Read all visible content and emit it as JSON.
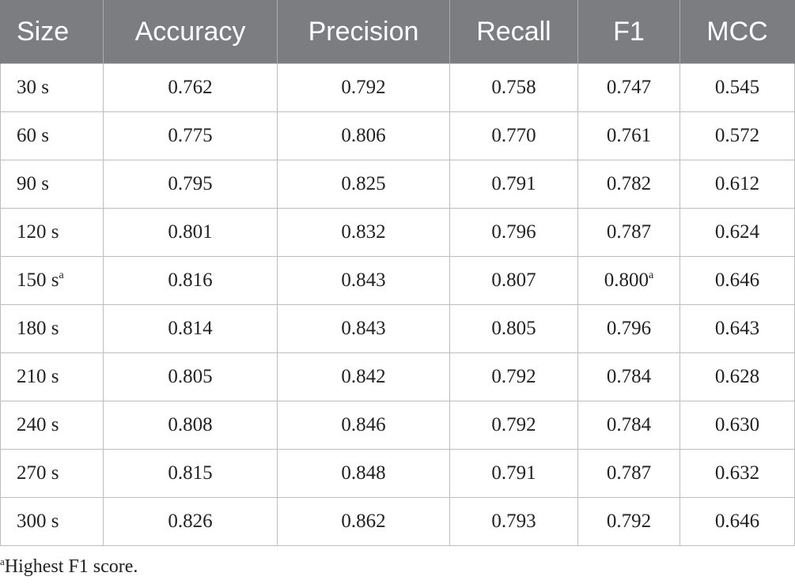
{
  "table": {
    "headers": [
      "Size",
      "Accuracy",
      "Precision",
      "Recall",
      "F1",
      "MCC"
    ],
    "rows": [
      {
        "size": "30 s",
        "size_mark": "",
        "accuracy": "0.762",
        "precision": "0.792",
        "recall": "0.758",
        "f1": "0.747",
        "f1_mark": "",
        "mcc": "0.545"
      },
      {
        "size": "60 s",
        "size_mark": "",
        "accuracy": "0.775",
        "precision": "0.806",
        "recall": "0.770",
        "f1": "0.761",
        "f1_mark": "",
        "mcc": "0.572"
      },
      {
        "size": "90 s",
        "size_mark": "",
        "accuracy": "0.795",
        "precision": "0.825",
        "recall": "0.791",
        "f1": "0.782",
        "f1_mark": "",
        "mcc": "0.612"
      },
      {
        "size": "120 s",
        "size_mark": "",
        "accuracy": "0.801",
        "precision": "0.832",
        "recall": "0.796",
        "f1": "0.787",
        "f1_mark": "",
        "mcc": "0.624"
      },
      {
        "size": "150 s",
        "size_mark": "a",
        "accuracy": "0.816",
        "precision": "0.843",
        "recall": "0.807",
        "f1": "0.800",
        "f1_mark": "a",
        "mcc": "0.646"
      },
      {
        "size": "180 s",
        "size_mark": "",
        "accuracy": "0.814",
        "precision": "0.843",
        "recall": "0.805",
        "f1": "0.796",
        "f1_mark": "",
        "mcc": "0.643"
      },
      {
        "size": "210 s",
        "size_mark": "",
        "accuracy": "0.805",
        "precision": "0.842",
        "recall": "0.792",
        "f1": "0.784",
        "f1_mark": "",
        "mcc": "0.628"
      },
      {
        "size": "240 s",
        "size_mark": "",
        "accuracy": "0.808",
        "precision": "0.846",
        "recall": "0.792",
        "f1": "0.784",
        "f1_mark": "",
        "mcc": "0.630"
      },
      {
        "size": "270 s",
        "size_mark": "",
        "accuracy": "0.815",
        "precision": "0.848",
        "recall": "0.791",
        "f1": "0.787",
        "f1_mark": "",
        "mcc": "0.632"
      },
      {
        "size": "300 s",
        "size_mark": "",
        "accuracy": "0.826",
        "precision": "0.862",
        "recall": "0.793",
        "f1": "0.792",
        "f1_mark": "",
        "mcc": "0.646"
      }
    ]
  },
  "footnote": {
    "mark": "a",
    "text": "Highest F1 score."
  }
}
